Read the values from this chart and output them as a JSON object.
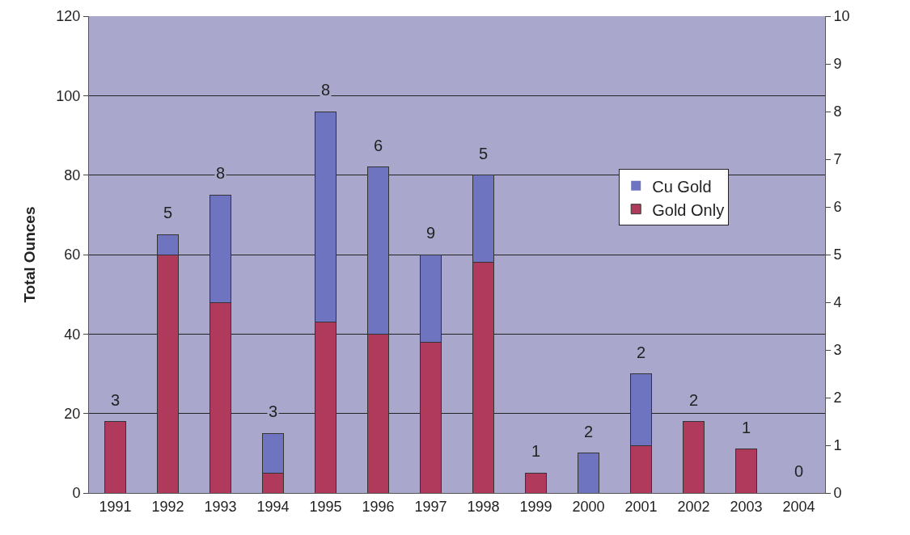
{
  "chart_data": {
    "type": "bar",
    "stacked": true,
    "ylabel": "Total Ounces",
    "categories": [
      "1991",
      "1992",
      "1993",
      "1994",
      "1995",
      "1996",
      "1997",
      "1998",
      "1999",
      "2000",
      "2001",
      "2002",
      "2003",
      "2004"
    ],
    "series": [
      {
        "name": "Gold Only",
        "color": "#b03a5c",
        "values": [
          18,
          60,
          48,
          5,
          43,
          40,
          38,
          58,
          5,
          0,
          12,
          18,
          11,
          0
        ]
      },
      {
        "name": "Cu Gold",
        "color": "#6f74c0",
        "values": [
          0,
          5,
          27,
          10,
          53,
          42,
          22,
          22,
          0,
          10,
          18,
          0,
          0,
          0
        ]
      }
    ],
    "annotations": [
      {
        "text": "3",
        "x": "1991",
        "y": 18
      },
      {
        "text": "5",
        "x": "1992",
        "y": 65
      },
      {
        "text": "8",
        "x": "1993",
        "y": 75
      },
      {
        "text": "3",
        "x": "1994",
        "y": 15
      },
      {
        "text": "8",
        "x": "1995",
        "y": 96
      },
      {
        "text": "6",
        "x": "1996",
        "y": 82
      },
      {
        "text": "9",
        "x": "1997",
        "y": 60
      },
      {
        "text": "5",
        "x": "1998",
        "y": 80
      },
      {
        "text": "1",
        "x": "1999",
        "y": 5
      },
      {
        "text": "2",
        "x": "2000",
        "y": 10
      },
      {
        "text": "2",
        "x": "2001",
        "y": 30
      },
      {
        "text": "2",
        "x": "2002",
        "y": 18
      },
      {
        "text": "1",
        "x": "2003",
        "y": 11
      },
      {
        "text": "0",
        "x": "2004",
        "y": 0
      }
    ],
    "ylim": [
      0,
      120
    ],
    "yticks": [
      0,
      20,
      40,
      60,
      80,
      100,
      120
    ],
    "y2lim": [
      0,
      10
    ],
    "y2ticks": [
      0,
      1,
      2,
      3,
      4,
      5,
      6,
      7,
      8,
      9,
      10
    ],
    "grid": "y",
    "legend": "right"
  }
}
